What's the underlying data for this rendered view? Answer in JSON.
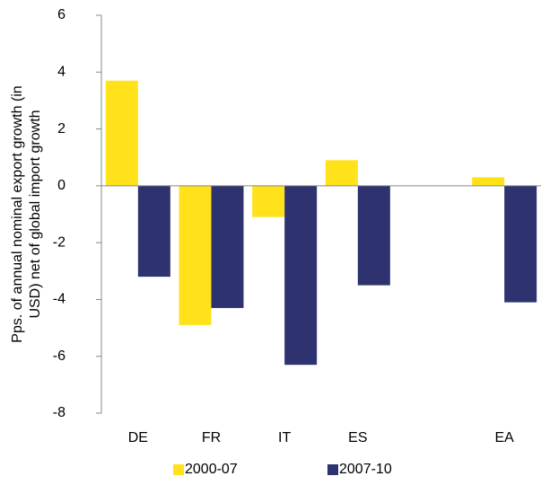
{
  "chart_data": {
    "type": "bar",
    "ylabel": [
      "Pps. of annual nominal export growth (in",
      "USD) net of global import growth"
    ],
    "categories": [
      "DE",
      "FR",
      "IT",
      "ES",
      null,
      "EA"
    ],
    "series": [
      {
        "name": "2000-07",
        "color": "#ffe21a",
        "values": [
          3.7,
          -4.9,
          -1.1,
          0.9,
          null,
          0.3
        ]
      },
      {
        "name": "2007-10",
        "color": "#2e3370",
        "values": [
          -3.2,
          -4.3,
          -6.3,
          -3.5,
          null,
          -4.1
        ]
      }
    ],
    "ylim": [
      -8,
      6
    ],
    "yticks": [
      -8,
      -6,
      -4,
      -2,
      0,
      2,
      4,
      6
    ],
    "grid": false,
    "legend": "bottom"
  }
}
